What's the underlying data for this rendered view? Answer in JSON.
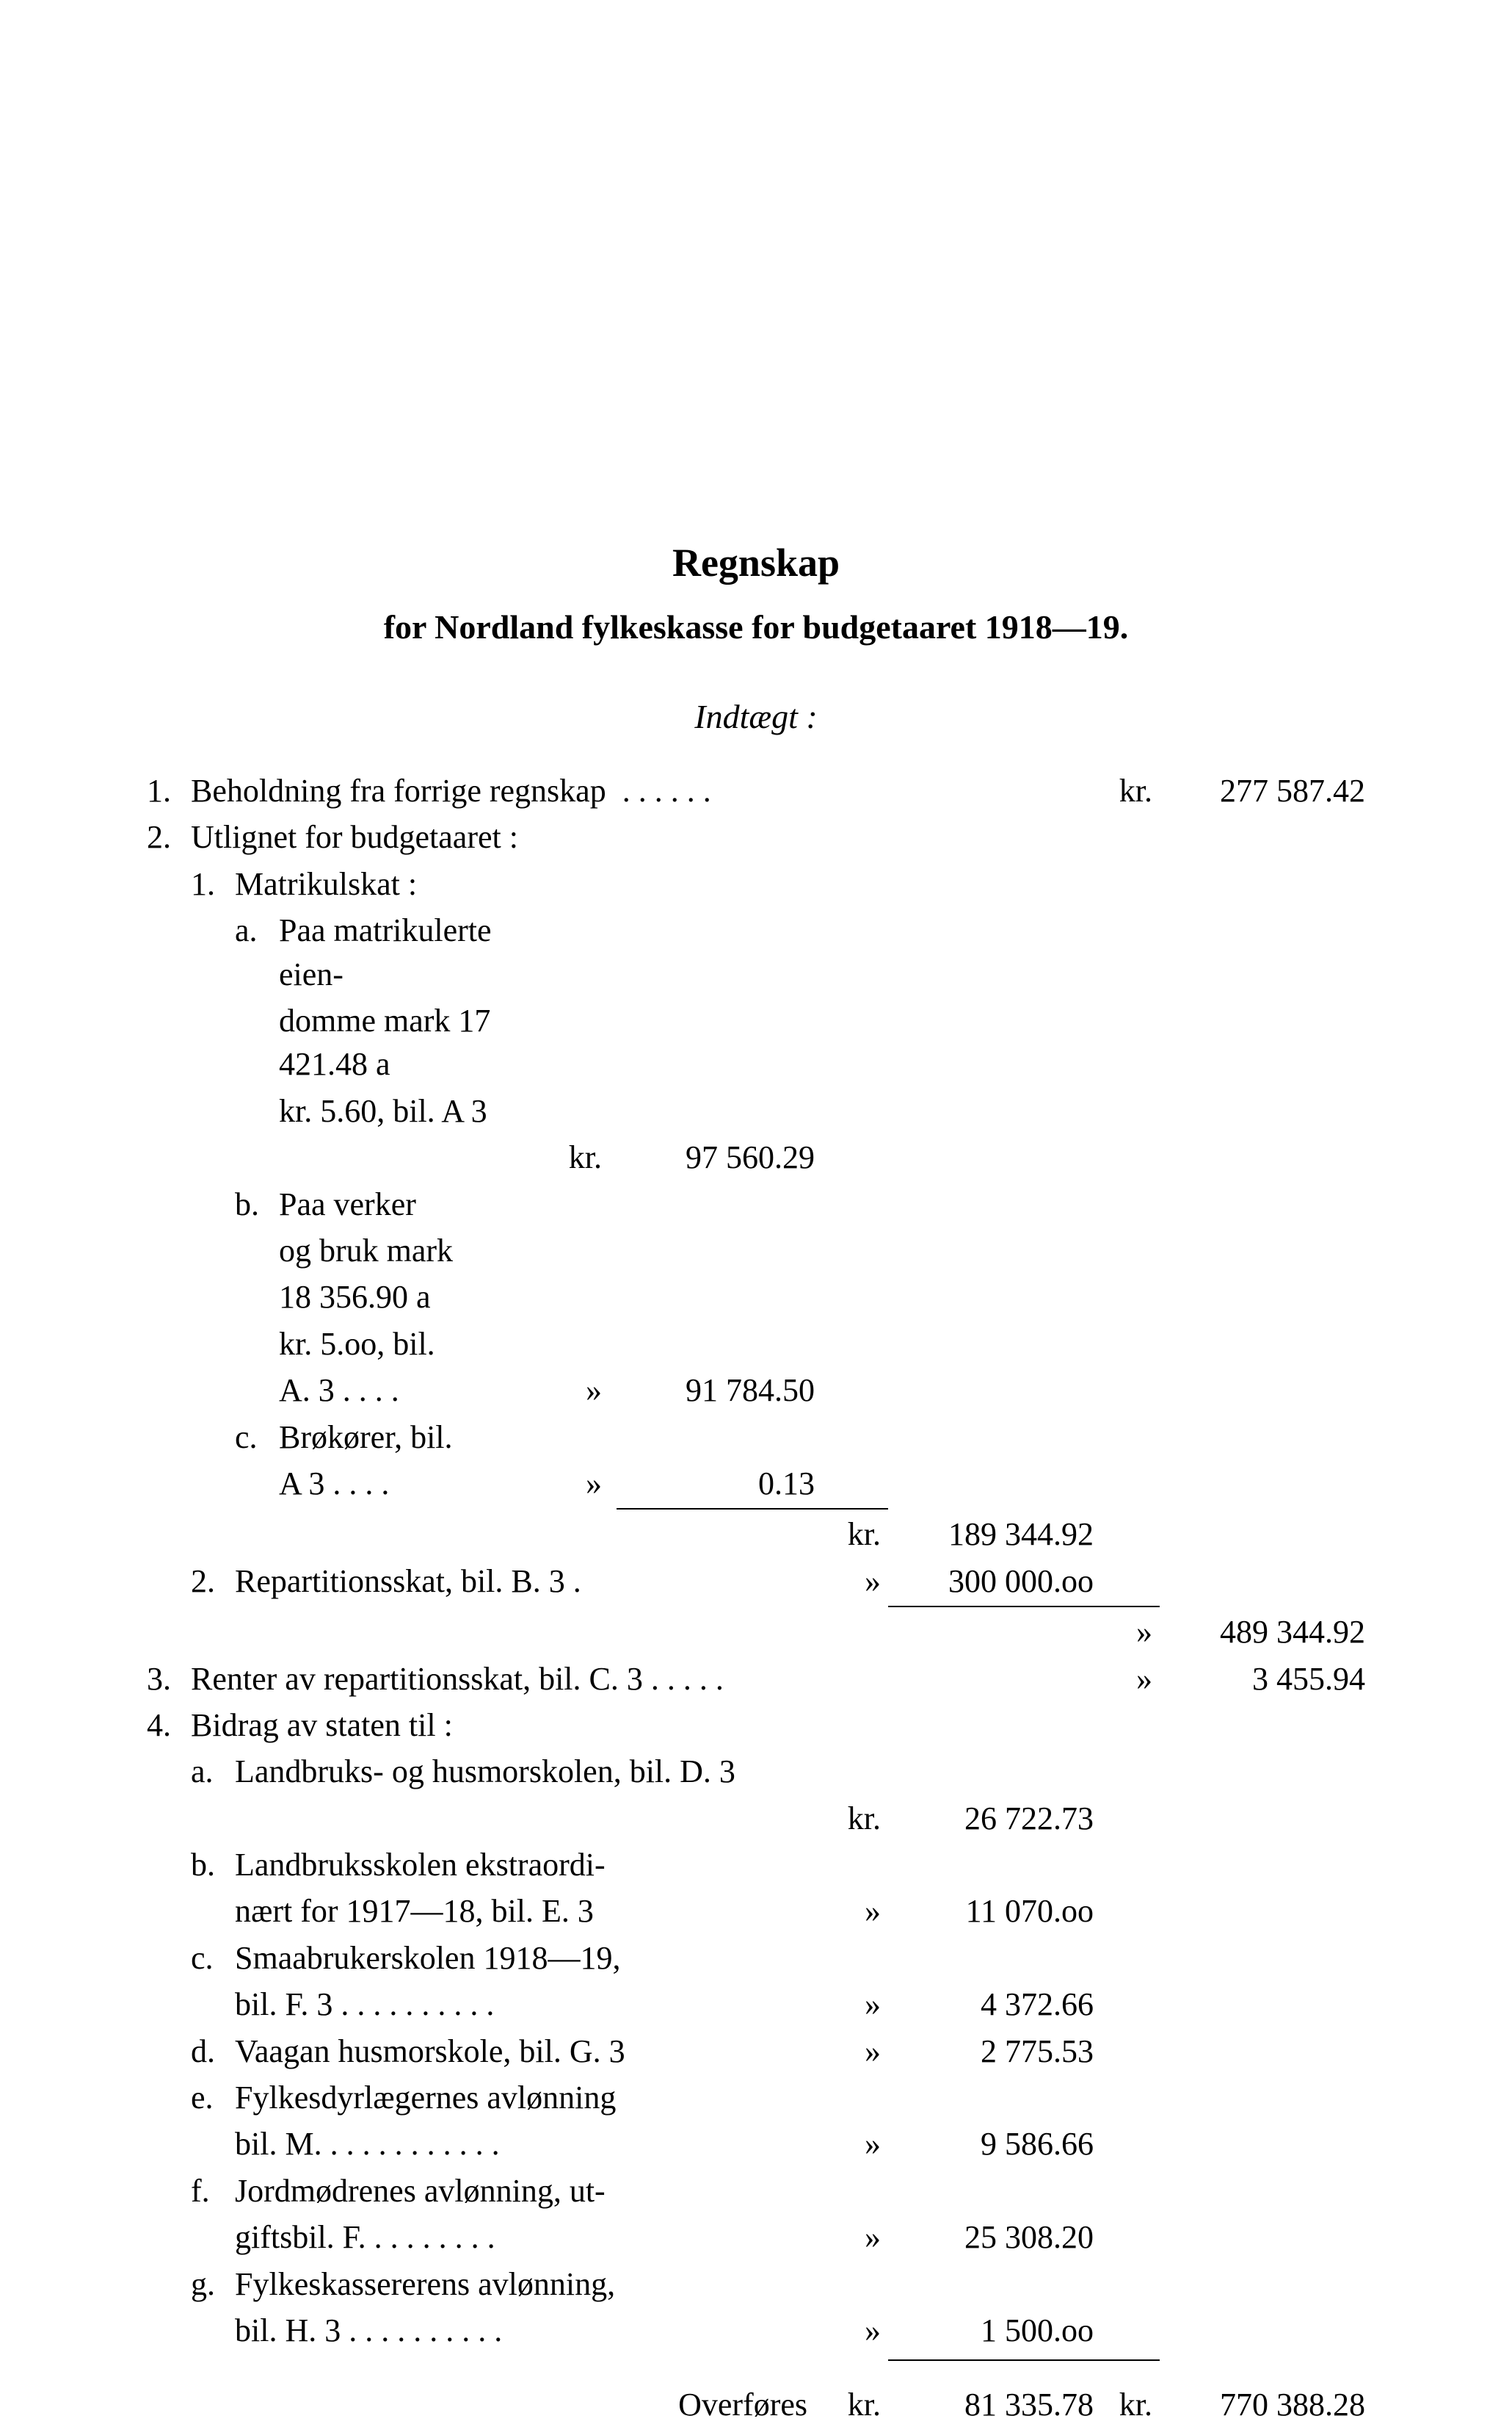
{
  "title": "Regnskap",
  "subtitle": "for Nordland fylkeskasse for budgetaaret 1918—19.",
  "section_heading": "Indtægt :",
  "currency_kr": "kr.",
  "currency_ditto": "»",
  "items": {
    "n1": {
      "num": "1.",
      "label_prefix": "Beholdning fra forrige regnskap",
      "dots": ". . . . . .",
      "unit": "kr.",
      "amount": "277 587.42"
    },
    "n2": {
      "num": "2.",
      "label": "Utlignet for budgetaaret :",
      "s1": {
        "num": "1.",
        "label": "Matrikulskat :",
        "a": {
          "let": "a.",
          "l1": "Paa matrikulerte eien-",
          "l2": "domme mark 17 421.48 a",
          "l3": "kr. 5.60, bil. A 3",
          "unit": "kr.",
          "amount": "97 560.29"
        },
        "b": {
          "let": "b.",
          "l1": "Paa verker",
          "l2": "og bruk mark",
          "l3": "18 356.90    a",
          "l4": "kr. 5.oo, bil.",
          "l5": "A. 3 . . . .",
          "unit": "»",
          "amount": "91 784.50"
        },
        "c": {
          "let": "c.",
          "l1": "Brøkører, bil.",
          "l2": "A 3 . . . .",
          "unit": "»",
          "amount": "0.13"
        },
        "subtotal_unit": "kr.",
        "subtotal": "189 344.92"
      },
      "s2": {
        "num": "2.",
        "label": "Repartitionsskat, bil. B. 3 .",
        "unit": "»",
        "amount": "300 000.oo"
      },
      "total_unit": "»",
      "total": "489 344.92"
    },
    "n3": {
      "num": "3.",
      "label": "Renter av repartitionsskat, bil. C. 3 . . . . .",
      "unit": "»",
      "amount": "3 455.94"
    },
    "n4": {
      "num": "4.",
      "label": "Bidrag av staten til :",
      "a": {
        "let": "a.",
        "l1": "Landbruks-  og  husmorskolen,  bil.  D. 3",
        "unit": "kr.",
        "amount": "26 722.73"
      },
      "b": {
        "let": "b.",
        "l1": "Landbruksskolen ekstraordi-",
        "l2": "nært for 1917—18, bil. E. 3",
        "unit": "»",
        "amount": "11 070.oo"
      },
      "c": {
        "let": "c.",
        "l1": "Smaabrukerskolen 1918—19,",
        "l2": "bil. F. 3 . . . . . . . . . .",
        "unit": "»",
        "amount": "4 372.66"
      },
      "d": {
        "let": "d.",
        "l1": "Vaagan husmorskole, bil. G. 3",
        "unit": "»",
        "amount": "2 775.53"
      },
      "e": {
        "let": "e.",
        "l1": "Fylkesdyrlægernes avlønning",
        "l2": "bil. M. . . . . . . . . . . .",
        "unit": "»",
        "amount": "9 586.66"
      },
      "f": {
        "let": "f.",
        "l1": "Jordmødrenes avlønning, ut-",
        "l2": "giftsbil. F.  . . . . . . . .",
        "unit": "»",
        "amount": "25 308.20"
      },
      "g": {
        "let": "g.",
        "l1": "Fylkeskassererens avlønning,",
        "l2": "bil. H. 3 . . . . . . . . . .",
        "unit": "»",
        "amount": "1 500.oo"
      }
    },
    "carry": {
      "label": "Overføres",
      "unit1": "kr.",
      "mid": "81 335.78",
      "unit2": "kr.",
      "right": "770 388.28"
    }
  }
}
